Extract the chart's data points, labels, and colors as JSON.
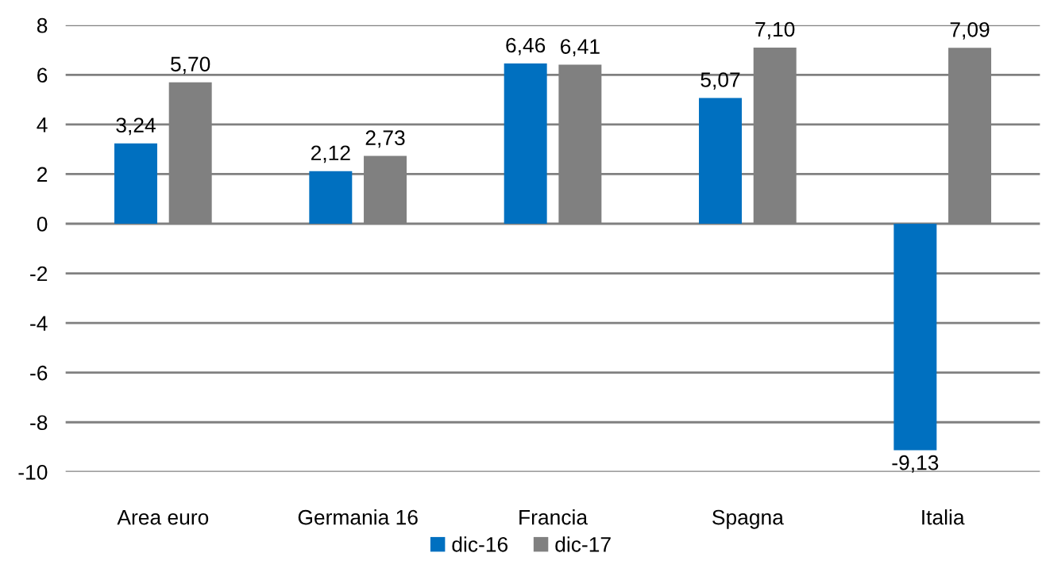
{
  "chart_data": {
    "type": "bar",
    "categories": [
      "Area euro",
      "Germania 16",
      "Francia",
      "Spagna",
      "Italia"
    ],
    "series": [
      {
        "name": "dic-16",
        "color": "#0070c0",
        "values": [
          3.24,
          2.12,
          6.46,
          5.07,
          -9.13
        ],
        "value_labels": [
          "3,24",
          "2,12",
          "6,46",
          "5,07",
          "-9,13"
        ]
      },
      {
        "name": "dic-17",
        "color": "#808080",
        "values": [
          5.7,
          2.73,
          6.41,
          7.1,
          7.09
        ],
        "value_labels": [
          "5,70",
          "2,73",
          "6,41",
          "7,10",
          "7,09"
        ]
      }
    ],
    "ylim": [
      -10,
      8
    ],
    "yticks": [
      {
        "value": -10,
        "label": "-10"
      },
      {
        "value": -8,
        "label": "-8"
      },
      {
        "value": -6,
        "label": "-6"
      },
      {
        "value": -4,
        "label": "-4"
      },
      {
        "value": -2,
        "label": "-2"
      },
      0,
      2,
      4,
      6,
      8
    ],
    "grid": "y",
    "legend": "bottom"
  }
}
